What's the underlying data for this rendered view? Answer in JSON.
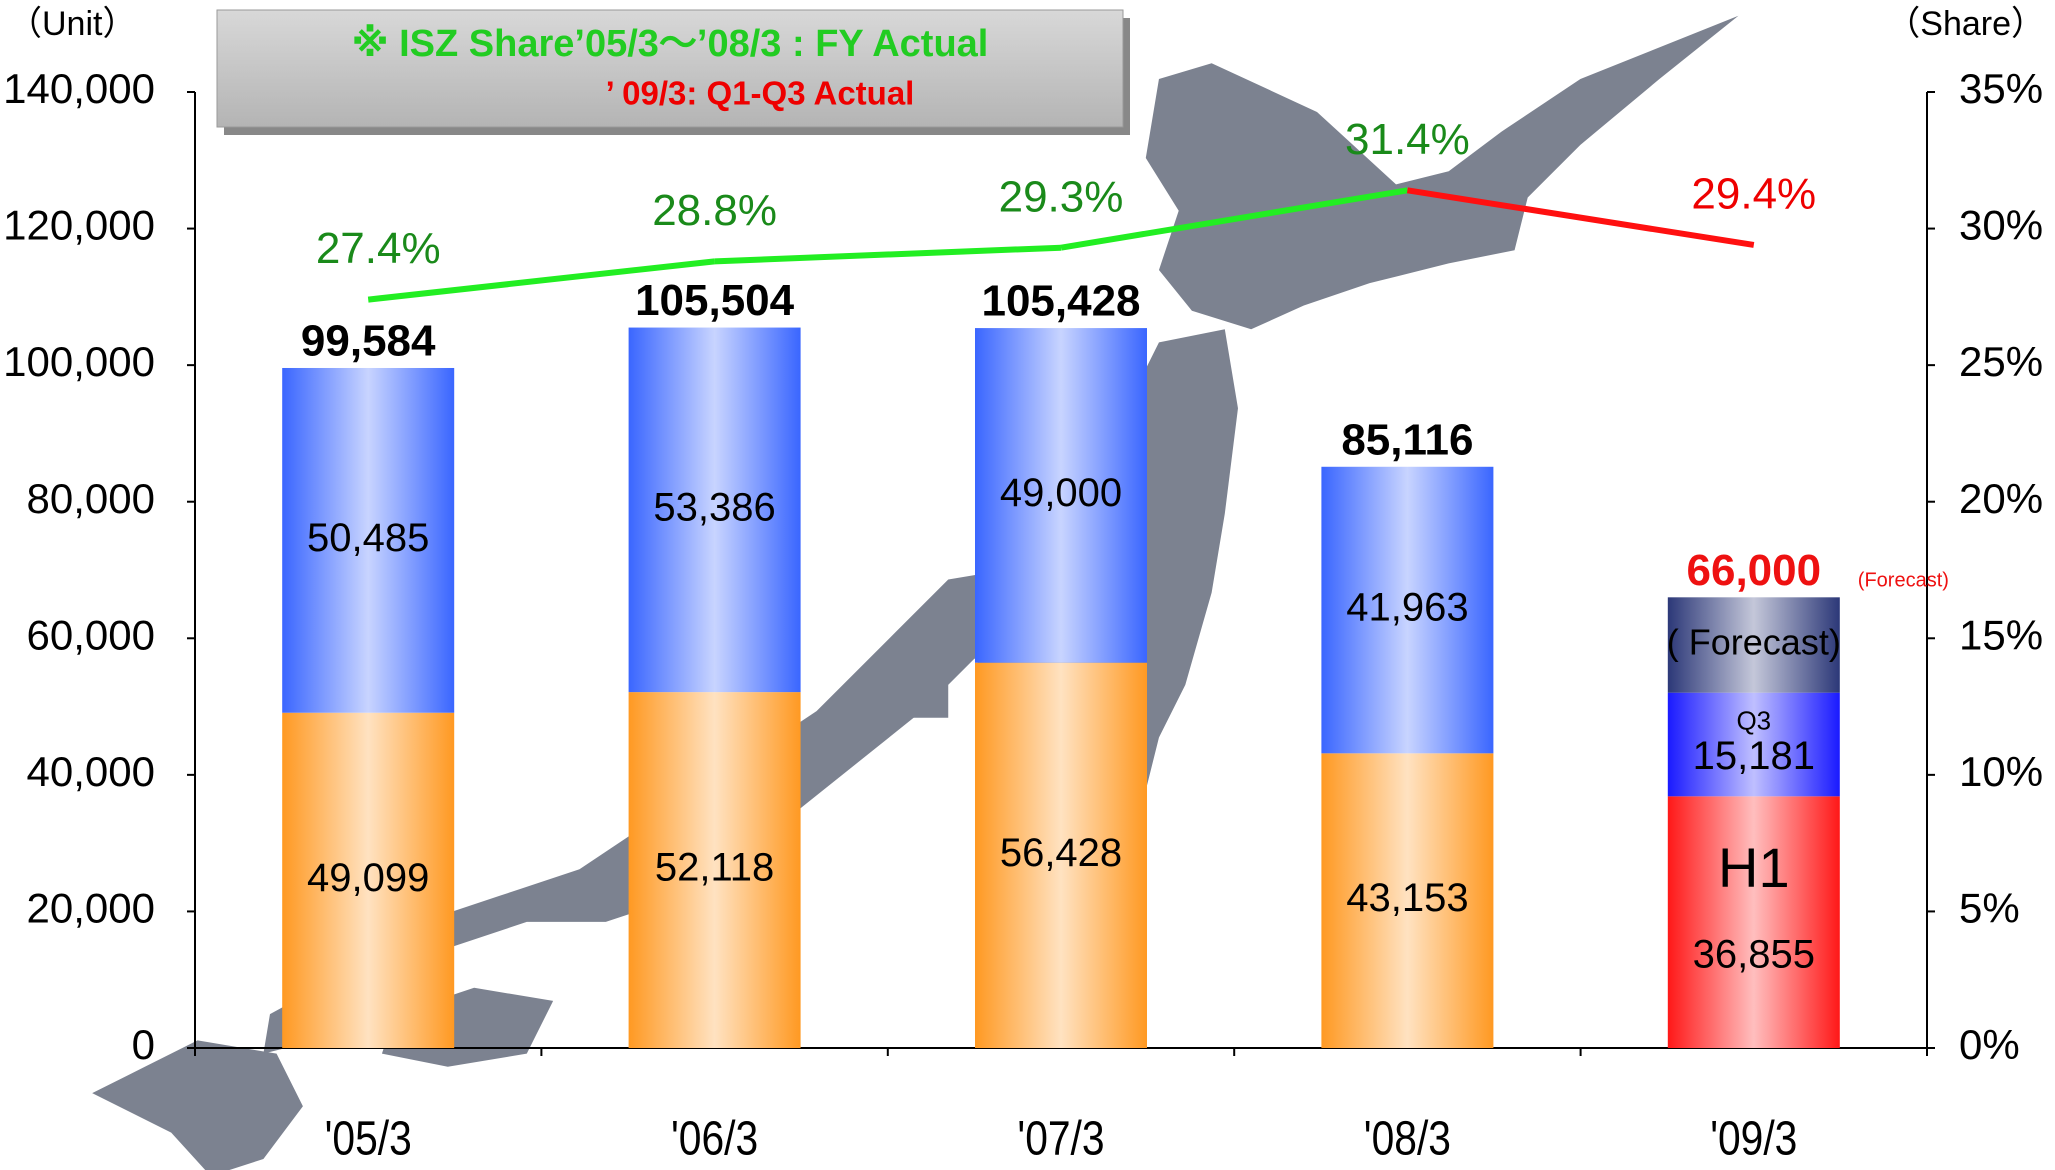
{
  "chart_data": {
    "type": "stacked_bar_line",
    "unit_label": "（Unit）",
    "share_label": "（Share）",
    "note_line1": "※ ISZ Share’05/3～’08/3 : FY Actual",
    "note_line2": "’ 09/3: Q1-Q3 Actual",
    "note_colors": [
      "#22cc22",
      "#ee0000"
    ],
    "categories": [
      "'05/3",
      "'06/3",
      "'07/3",
      "'08/3",
      "'09/3"
    ],
    "ylim": [
      0,
      140000
    ],
    "yticks": [
      0,
      {
        "value": 20000,
        "label": "20,000"
      },
      {
        "value": 40000,
        "label": "40,000"
      },
      {
        "value": 60000,
        "label": "60,000"
      },
      {
        "value": 80000,
        "label": "80,000"
      },
      {
        "value": 100000,
        "label": "100,000"
      },
      {
        "value": 120000,
        "label": "120,000"
      },
      {
        "value": 140000,
        "label": "140,000"
      }
    ],
    "y2lim": [
      0,
      35
    ],
    "y2ticks": [
      {
        "value": 0,
        "label": "0%"
      },
      {
        "value": 5,
        "label": "5%"
      },
      {
        "value": 10,
        "label": "10%"
      },
      {
        "value": 15,
        "label": "15%"
      },
      {
        "value": 20,
        "label": "20%"
      },
      {
        "value": 25,
        "label": "25%"
      },
      {
        "value": 30,
        "label": "30%"
      },
      {
        "value": 35,
        "label": "35%"
      }
    ],
    "series": [
      {
        "colors": [
          "#ff9922",
          "#ff9922",
          "#ff9922",
          "#ff9922",
          "#ff1818"
        ],
        "values": [
          49099,
          52118,
          56428,
          43153,
          36855
        ],
        "value_labels": [
          "49,099",
          "52,118",
          "56,428",
          "43,153",
          "36,855"
        ],
        "notes": [
          null,
          null,
          null,
          null,
          "H1"
        ]
      },
      {
        "colors": [
          "#3a66ff",
          "#3a66ff",
          "#3a66ff",
          "#3a66ff",
          "#1a1aff"
        ],
        "values": [
          50485,
          53386,
          49000,
          41963,
          15181
        ],
        "value_labels": [
          "50,485",
          "53,386",
          "49,000",
          "41,963",
          "15,181"
        ],
        "notes": [
          null,
          null,
          null,
          null,
          "Q3"
        ]
      },
      {
        "colors": [
          null,
          null,
          null,
          null,
          "#2c3878"
        ],
        "values": [
          null,
          null,
          null,
          null,
          13964
        ],
        "notes": [
          null,
          null,
          null,
          null,
          "( Forecast)"
        ]
      },
      {
        "type": "line",
        "axis": "y2",
        "values": [
          27.4,
          28.8,
          29.3,
          31.4,
          29.4
        ],
        "value_labels": [
          "27.4%",
          "28.8%",
          "29.3%",
          "31.4%",
          "29.4%"
        ],
        "point_colors": [
          "#22ee22",
          "#22ee22",
          "#22ee22",
          "#22ee22",
          "#ff1010"
        ],
        "label_colors": [
          "#1a8a1a",
          "#1a8a1a",
          "#1a8a1a",
          "#1a8a1a",
          "#ee0000"
        ]
      }
    ],
    "totals": [
      99584,
      105504,
      105428,
      85116,
      66000
    ],
    "total_labels": [
      "99,584",
      "105,504",
      "105,428",
      "85,116",
      "66,000"
    ],
    "total_colors": [
      "#000000",
      "#000000",
      "#000000",
      "#000000",
      "#ee1111"
    ],
    "total_notes": [
      null,
      null,
      null,
      null,
      "(Forecast)"
    ]
  }
}
